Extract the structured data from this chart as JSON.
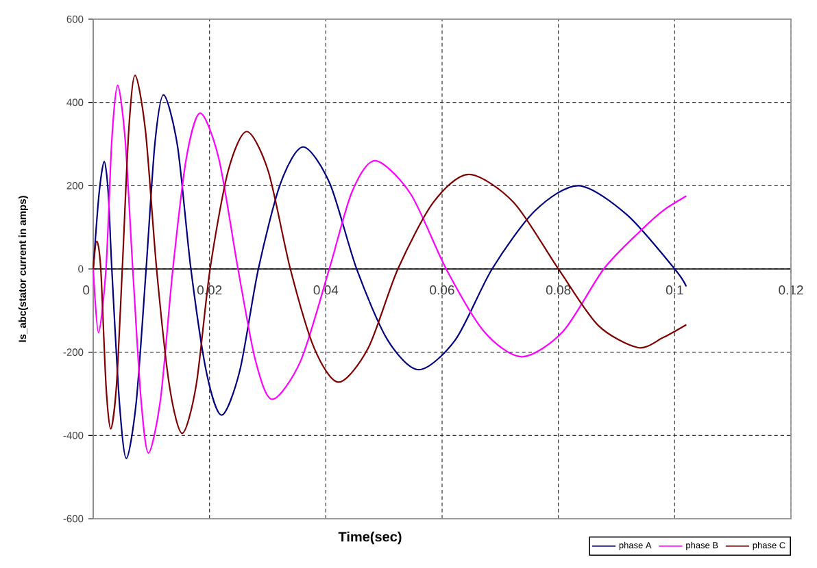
{
  "chart_data": {
    "type": "line",
    "xlabel": "Time(sec)",
    "ylabel": "Is_abc(stator current in amps)",
    "xlim": [
      0,
      0.12
    ],
    "ylim": [
      -600,
      600
    ],
    "xticks": [
      0,
      0.02,
      0.04,
      0.06,
      0.08,
      0.1,
      0.12
    ],
    "yticks": [
      -600,
      -400,
      -200,
      0,
      200,
      400,
      600
    ],
    "grid": true,
    "legend": "bottom right",
    "series": [
      {
        "name": "phase A",
        "color": "#000080",
        "x": [
          0,
          0.001,
          0.0019,
          0.0026,
          0.0032,
          0.0045,
          0.0057,
          0.0074,
          0.0091,
          0.0106,
          0.0121,
          0.0145,
          0.0168,
          0.0195,
          0.0221,
          0.0252,
          0.0284,
          0.0322,
          0.0361,
          0.0407,
          0.0453,
          0.0506,
          0.056,
          0.0623,
          0.0686,
          0.076,
          0.0835,
          0.0918,
          0.1,
          0.102
        ],
        "values": [
          0,
          180,
          258,
          180,
          0,
          -320,
          -455,
          -320,
          0,
          300,
          418,
          295,
          0,
          -250,
          -351,
          -245,
          0,
          205,
          293,
          205,
          0,
          -170,
          -242,
          -170,
          0,
          140,
          200,
          130,
          0,
          -42
        ]
      },
      {
        "name": "phase B",
        "color": "#ff00ff",
        "x": [
          0,
          0.0009,
          0.0022,
          0.0032,
          0.0042,
          0.0055,
          0.0068,
          0.0082,
          0.0095,
          0.0116,
          0.0137,
          0.016,
          0.0184,
          0.0216,
          0.0249,
          0.0279,
          0.0308,
          0.0357,
          0.0406,
          0.0445,
          0.0485,
          0.0546,
          0.0607,
          0.0672,
          0.0737,
          0.0808,
          0.0878,
          0.094,
          0.098,
          0.102
        ],
        "values": [
          0,
          -153,
          0,
          310,
          441,
          310,
          0,
          -310,
          -442,
          -310,
          0,
          265,
          374,
          265,
          0,
          -220,
          -313,
          -220,
          0,
          185,
          260,
          180,
          0,
          -150,
          -211,
          -150,
          0,
          90,
          140,
          175
        ]
      },
      {
        "name": "phase C",
        "color": "#800000",
        "x": [
          0,
          0.0006,
          0.0013,
          0.0022,
          0.003,
          0.004,
          0.005,
          0.0061,
          0.0072,
          0.009,
          0.0109,
          0.0131,
          0.0153,
          0.0177,
          0.0201,
          0.0232,
          0.0264,
          0.0301,
          0.0339,
          0.038,
          0.0422,
          0.0473,
          0.0524,
          0.0585,
          0.0646,
          0.0723,
          0.08,
          0.0868,
          0.0937,
          0.098,
          0.102
        ],
        "values": [
          0,
          67,
          0,
          -280,
          -384,
          -280,
          0,
          330,
          465,
          330,
          0,
          -280,
          -395,
          -280,
          0,
          235,
          330,
          235,
          0,
          -190,
          -272,
          -190,
          0,
          160,
          227,
          160,
          0,
          -135,
          -189,
          -165,
          -134
        ]
      }
    ]
  }
}
